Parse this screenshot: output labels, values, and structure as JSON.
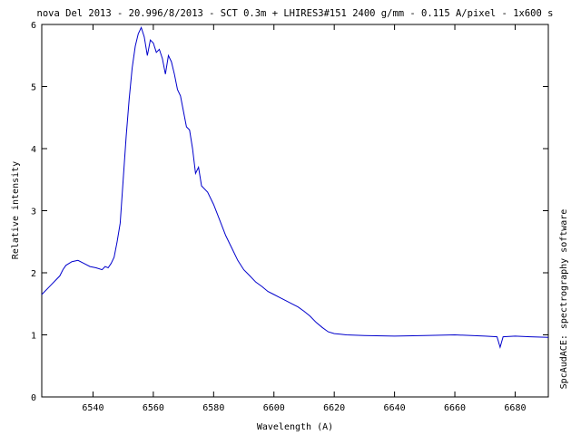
{
  "chart_data": {
    "type": "line",
    "title": "nova Del 2013 - 20.996/8/2013 - SCT 0.3m + LHIRES3#151 2400 g/mm - 0.115 A/pixel - 1x600 s",
    "xlabel": "Wavelength (A)",
    "ylabel": "Relative intensity",
    "side_label": "SpcAudACE: spectrography software",
    "xlim": [
      6523,
      6691
    ],
    "ylim": [
      0,
      6
    ],
    "x_ticks": [
      6540,
      6560,
      6580,
      6600,
      6620,
      6640,
      6660,
      6680
    ],
    "y_ticks": [
      0,
      1,
      2,
      3,
      4,
      5,
      6
    ],
    "grid": false,
    "line_color": "#0000cc",
    "series": [
      {
        "x": [
          6523,
          6526,
          6529,
          6530,
          6531,
          6533,
          6535,
          6537,
          6539,
          6541,
          6543,
          6544,
          6545,
          6546,
          6547,
          6548,
          6549,
          6550,
          6551,
          6552,
          6553,
          6554,
          6555,
          6556,
          6557,
          6558,
          6559,
          6560,
          6561,
          6562,
          6563,
          6564,
          6565,
          6566,
          6567,
          6568,
          6569,
          6570,
          6571,
          6572,
          6573,
          6574,
          6575,
          6576,
          6578,
          6580,
          6582,
          6584,
          6586,
          6588,
          6590,
          6592,
          6594,
          6596,
          6598,
          6600,
          6602,
          6604,
          6606,
          6608,
          6610,
          6612,
          6614,
          6616,
          6618,
          6620,
          6622,
          6624,
          6630,
          6640,
          6650,
          6660,
          6670,
          6674,
          6675,
          6676,
          6680,
          6685,
          6691
        ],
        "y": [
          1.65,
          1.8,
          1.95,
          2.05,
          2.12,
          2.18,
          2.2,
          2.15,
          2.1,
          2.08,
          2.05,
          2.1,
          2.08,
          2.15,
          2.25,
          2.5,
          2.8,
          3.5,
          4.2,
          4.8,
          5.3,
          5.65,
          5.85,
          5.95,
          5.8,
          5.5,
          5.75,
          5.7,
          5.55,
          5.6,
          5.45,
          5.2,
          5.5,
          5.4,
          5.2,
          4.95,
          4.85,
          4.6,
          4.35,
          4.3,
          4.0,
          3.6,
          3.7,
          3.4,
          3.3,
          3.1,
          2.85,
          2.6,
          2.4,
          2.2,
          2.05,
          1.95,
          1.85,
          1.78,
          1.7,
          1.65,
          1.6,
          1.55,
          1.5,
          1.45,
          1.38,
          1.3,
          1.2,
          1.12,
          1.05,
          1.02,
          1.01,
          1.0,
          0.99,
          0.98,
          0.99,
          1.0,
          0.98,
          0.97,
          0.8,
          0.97,
          0.98,
          0.97,
          0.96
        ]
      }
    ]
  }
}
